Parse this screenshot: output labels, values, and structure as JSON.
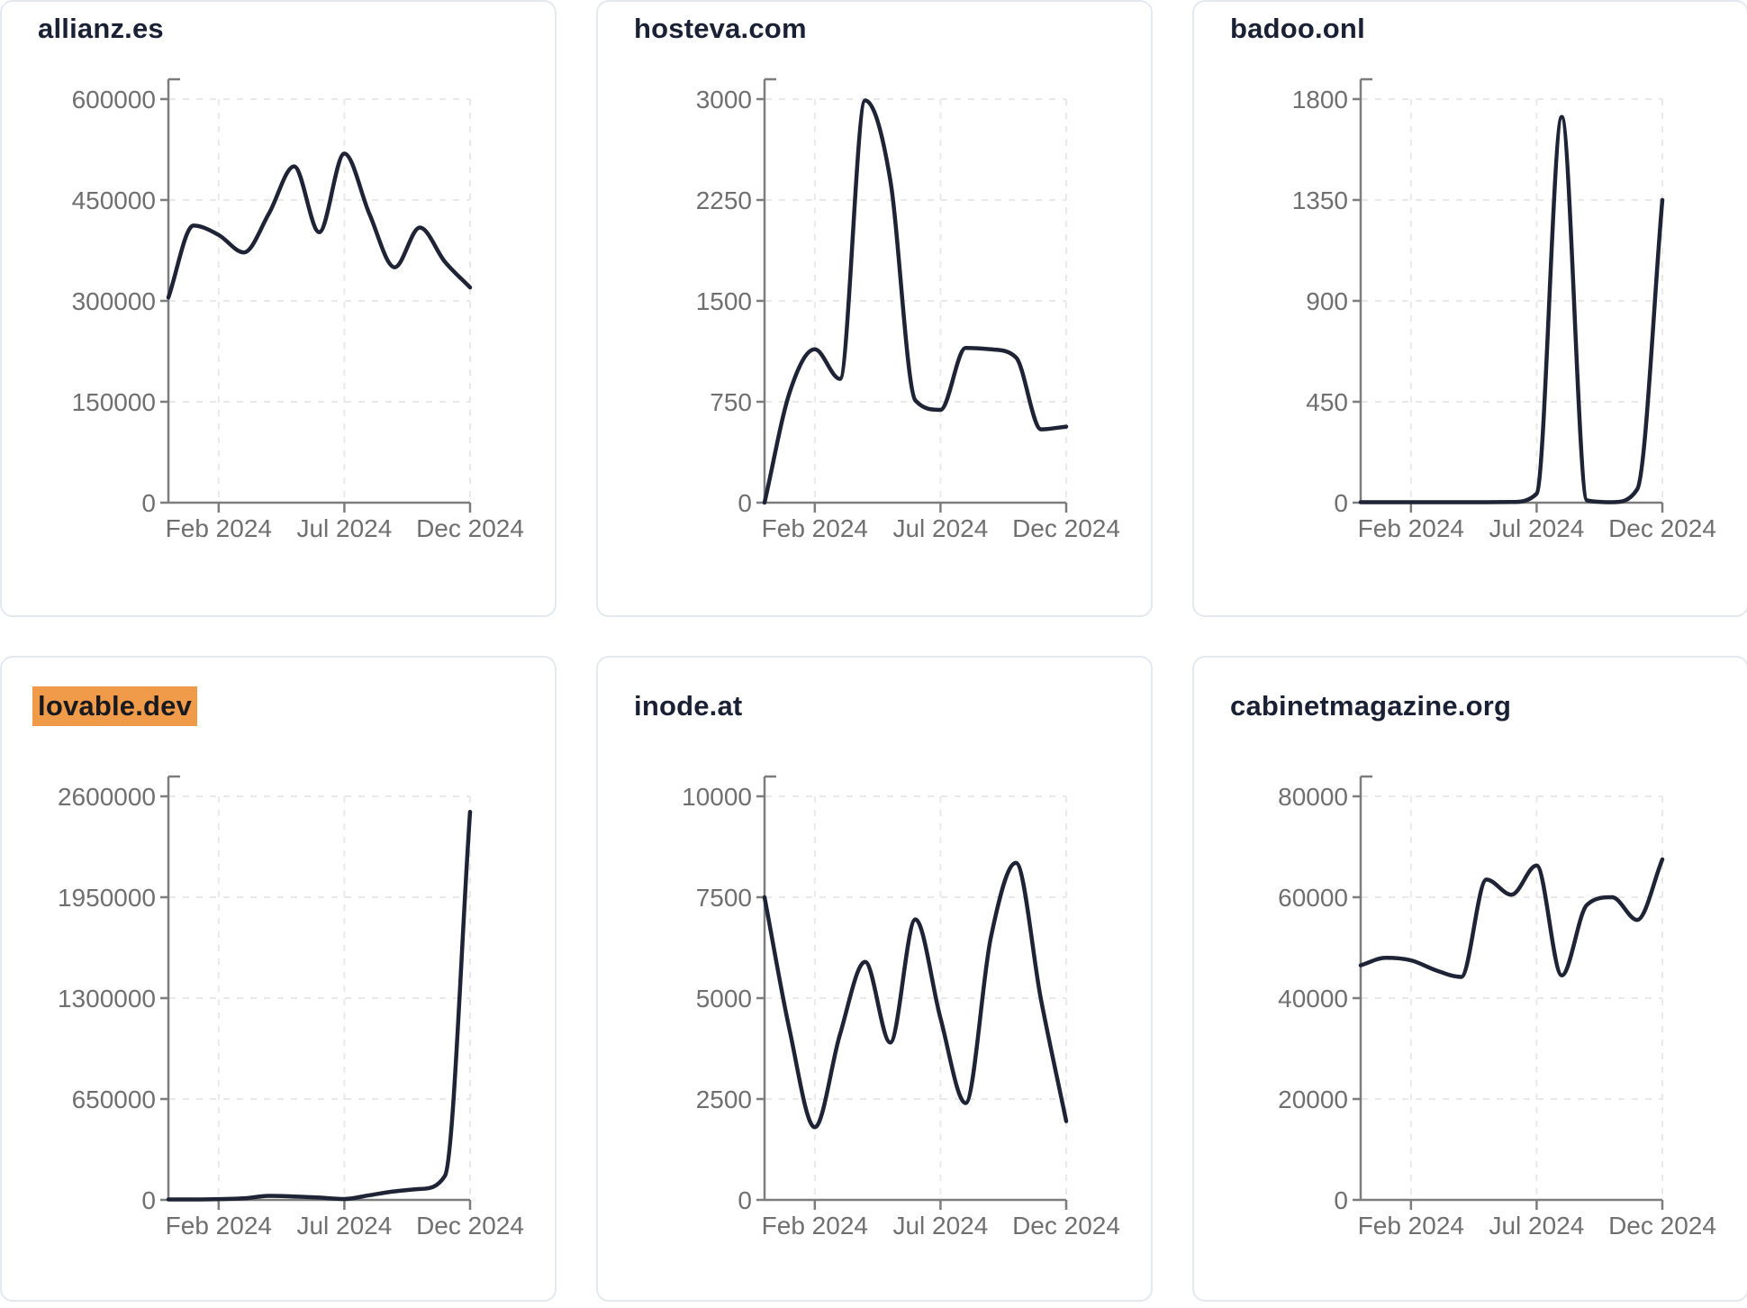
{
  "page": {
    "background": "#ffffff",
    "description": "Dashboard grid of six domain traffic sparkline cards for year 2024"
  },
  "colors": {
    "line": "#1e2435",
    "axis": "#7d7d7d",
    "tick_text": "#6f6f6f",
    "grid": "#e9e9e9",
    "card_border": "#e4e9f0",
    "card_bg": "#ffffff",
    "title": "#1b2135",
    "highlight_bg": "#ef9b4a",
    "highlight_text": "#191a1e"
  },
  "x_axis": {
    "labels": [
      "Feb 2024",
      "Jul 2024",
      "Dec 2024"
    ],
    "indices": [
      2,
      7,
      12
    ]
  },
  "chart_data": [
    {
      "id": "allianz-es",
      "title": "allianz.es",
      "highlighted": false,
      "type": "line",
      "x": [
        "Dec 2023",
        "Jan 2024",
        "Feb 2024",
        "Mar 2024",
        "Apr 2024",
        "May 2024",
        "Jun 2024",
        "Jul 2024",
        "Aug 2024",
        "Sep 2024",
        "Oct 2024",
        "Nov 2024",
        "Dec 2024"
      ],
      "values": [
        305000,
        412000,
        398000,
        372000,
        430000,
        500000,
        402000,
        519000,
        429000,
        350000,
        409000,
        358000,
        320000
      ],
      "ylim": [
        0,
        600000
      ],
      "y_ticks": [
        0,
        150000,
        300000,
        450000,
        600000
      ],
      "grid": true,
      "legend": "none"
    },
    {
      "id": "hosteva-com",
      "title": "hosteva.com",
      "highlighted": false,
      "type": "line",
      "x": [
        "Dec 2023",
        "Jan 2024",
        "Feb 2024",
        "Mar 2024",
        "Apr 2024",
        "May 2024",
        "Jun 2024",
        "Jul 2024",
        "Aug 2024",
        "Sep 2024",
        "Oct 2024",
        "Nov 2024",
        "Dec 2024"
      ],
      "values": [
        0,
        820,
        1140,
        920,
        2990,
        2400,
        760,
        690,
        1150,
        1140,
        1080,
        545,
        565
      ],
      "ylim": [
        0,
        3000
      ],
      "y_ticks": [
        0,
        750,
        1500,
        2250,
        3000
      ],
      "grid": true,
      "legend": "none"
    },
    {
      "id": "badoo-onl",
      "title": "badoo.onl",
      "highlighted": false,
      "type": "line",
      "x": [
        "Dec 2023",
        "Jan 2024",
        "Feb 2024",
        "Mar 2024",
        "Apr 2024",
        "May 2024",
        "Jun 2024",
        "Jul 2024",
        "Aug 2024",
        "Sep 2024",
        "Oct 2024",
        "Nov 2024",
        "Dec 2024"
      ],
      "values": [
        2,
        2,
        2,
        2,
        2,
        2,
        3,
        40,
        1720,
        10,
        2,
        60,
        1350
      ],
      "ylim": [
        0,
        1800
      ],
      "y_ticks": [
        0,
        450,
        900,
        1350,
        1800
      ],
      "grid": true,
      "legend": "none"
    },
    {
      "id": "lovable-dev",
      "title": "lovable.dev",
      "highlighted": true,
      "type": "line",
      "x": [
        "Dec 2023",
        "Jan 2024",
        "Feb 2024",
        "Mar 2024",
        "Apr 2024",
        "May 2024",
        "Jun 2024",
        "Jul 2024",
        "Aug 2024",
        "Sep 2024",
        "Oct 2024",
        "Nov 2024",
        "Dec 2024"
      ],
      "values": [
        3000,
        3000,
        5000,
        10000,
        26000,
        22000,
        15000,
        6000,
        30000,
        55000,
        70000,
        155000,
        2500000
      ],
      "ylim": [
        0,
        2600000
      ],
      "y_ticks": [
        0,
        650000,
        1300000,
        1950000,
        2600000
      ],
      "grid": true,
      "legend": "none"
    },
    {
      "id": "inode-at",
      "title": "inode.at",
      "highlighted": false,
      "type": "line",
      "x": [
        "Dec 2023",
        "Jan 2024",
        "Feb 2024",
        "Mar 2024",
        "Apr 2024",
        "May 2024",
        "Jun 2024",
        "Jul 2024",
        "Aug 2024",
        "Sep 2024",
        "Oct 2024",
        "Nov 2024",
        "Dec 2024"
      ],
      "values": [
        7500,
        4200,
        1800,
        4100,
        5900,
        3900,
        6950,
        4500,
        2400,
        6500,
        8350,
        4950,
        1950
      ],
      "ylim": [
        0,
        10000
      ],
      "y_ticks": [
        0,
        2500,
        5000,
        7500,
        10000
      ],
      "grid": true,
      "legend": "none"
    },
    {
      "id": "cabinetmagazine-org",
      "title": "cabinetmagazine.org",
      "highlighted": false,
      "type": "line",
      "x": [
        "Dec 2023",
        "Jan 2024",
        "Feb 2024",
        "Mar 2024",
        "Apr 2024",
        "May 2024",
        "Jun 2024",
        "Jul 2024",
        "Aug 2024",
        "Sep 2024",
        "Oct 2024",
        "Nov 2024",
        "Dec 2024"
      ],
      "values": [
        46500,
        48000,
        47500,
        45500,
        44200,
        63500,
        60500,
        66300,
        44500,
        58500,
        60000,
        55500,
        67500
      ],
      "ylim": [
        0,
        80000
      ],
      "y_ticks": [
        0,
        20000,
        40000,
        60000,
        80000
      ],
      "grid": true,
      "legend": "none"
    }
  ]
}
